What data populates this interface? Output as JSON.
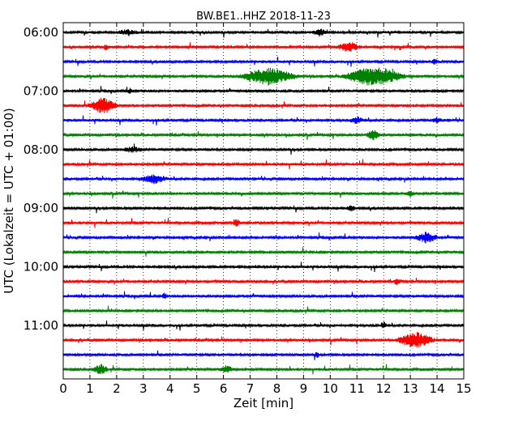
{
  "chart_data": {
    "type": "line",
    "title": "BW.BE1..HHZ 2018-11-23",
    "xlabel": "Zeit  [min]",
    "ylabel": "UTC (Lokalzeit = UTC + 01:00)",
    "xlim": [
      0,
      15
    ],
    "x_ticks": [
      "0",
      "1",
      "2",
      "3",
      "4",
      "5",
      "6",
      "7",
      "8",
      "9",
      "10",
      "11",
      "12",
      "13",
      "14",
      "15"
    ],
    "y_ticks": [
      "06:00",
      "07:00",
      "08:00",
      "09:00",
      "10:00",
      "11:00"
    ],
    "grid": "vertical dotted at each minute",
    "trace_colors": [
      "#000000",
      "#ff0000",
      "#0000ff",
      "#008000"
    ],
    "traces_start": "06:00",
    "trace_interval_minutes": 15,
    "trace_count": 24,
    "events": [
      {
        "trace": 0,
        "minute": 2.4,
        "amp": 0.25,
        "dur": 0.5
      },
      {
        "trace": 0,
        "minute": 9.6,
        "amp": 0.4,
        "dur": 0.3
      },
      {
        "trace": 1,
        "minute": 10.7,
        "amp": 0.55,
        "dur": 0.5
      },
      {
        "trace": 1,
        "minute": 1.6,
        "amp": 0.3,
        "dur": 0.15
      },
      {
        "trace": 2,
        "minute": 13.9,
        "amp": 0.3,
        "dur": 0.15
      },
      {
        "trace": 3,
        "minute": 7.7,
        "amp": 1.0,
        "dur": 1.2
      },
      {
        "trace": 3,
        "minute": 11.3,
        "amp": 1.0,
        "dur": 0.9
      },
      {
        "trace": 3,
        "minute": 12.1,
        "amp": 0.8,
        "dur": 0.8
      },
      {
        "trace": 4,
        "minute": 2.5,
        "amp": 0.3,
        "dur": 0.1
      },
      {
        "trace": 5,
        "minute": 1.5,
        "amp": 1.0,
        "dur": 0.6
      },
      {
        "trace": 6,
        "minute": 11.0,
        "amp": 0.4,
        "dur": 0.3
      },
      {
        "trace": 6,
        "minute": 14.0,
        "amp": 0.35,
        "dur": 0.2
      },
      {
        "trace": 7,
        "minute": 11.6,
        "amp": 0.6,
        "dur": 0.3
      },
      {
        "trace": 8,
        "minute": 2.6,
        "amp": 0.3,
        "dur": 0.4
      },
      {
        "trace": 10,
        "minute": 3.4,
        "amp": 0.5,
        "dur": 0.6
      },
      {
        "trace": 11,
        "minute": 13.0,
        "amp": 0.3,
        "dur": 0.15
      },
      {
        "trace": 12,
        "minute": 10.8,
        "amp": 0.35,
        "dur": 0.2
      },
      {
        "trace": 13,
        "minute": 6.5,
        "amp": 0.4,
        "dur": 0.15
      },
      {
        "trace": 14,
        "minute": 13.6,
        "amp": 0.6,
        "dur": 0.5
      },
      {
        "trace": 17,
        "minute": 12.5,
        "amp": 0.35,
        "dur": 0.15
      },
      {
        "trace": 18,
        "minute": 3.8,
        "amp": 0.3,
        "dur": 0.15
      },
      {
        "trace": 20,
        "minute": 12.0,
        "amp": 0.4,
        "dur": 0.15
      },
      {
        "trace": 21,
        "minute": 13.2,
        "amp": 1.0,
        "dur": 0.8
      },
      {
        "trace": 22,
        "minute": 9.5,
        "amp": 0.3,
        "dur": 0.1
      },
      {
        "trace": 23,
        "minute": 1.4,
        "amp": 0.6,
        "dur": 0.3
      },
      {
        "trace": 23,
        "minute": 6.1,
        "amp": 0.4,
        "dur": 0.3
      }
    ]
  }
}
